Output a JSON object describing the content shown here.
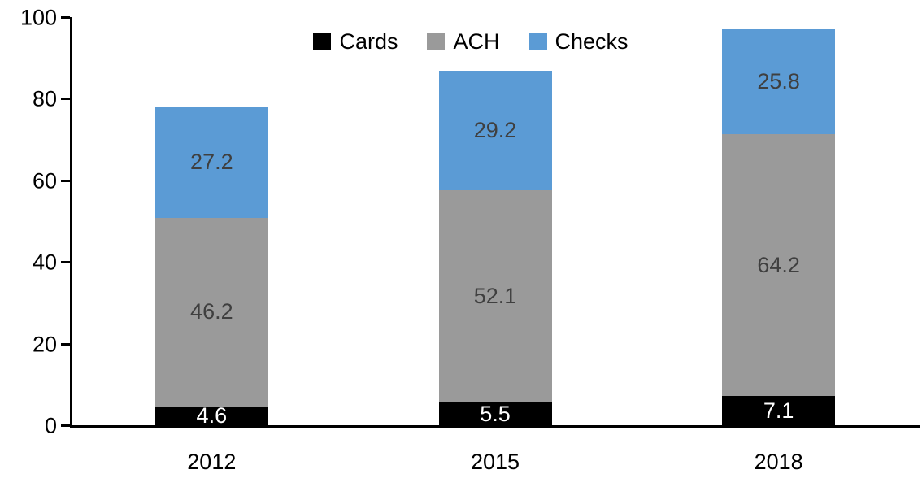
{
  "chart_data": {
    "type": "bar",
    "stacked": true,
    "title": "",
    "categories": [
      "2012",
      "2015",
      "2018"
    ],
    "series": [
      {
        "name": "Cards",
        "color": "#000000",
        "label_color": "#FFFFFF",
        "values": [
          4.6,
          5.5,
          7.1
        ]
      },
      {
        "name": "ACH",
        "color": "#9A9A9A",
        "label_color": "#3F3F3F",
        "values": [
          46.2,
          52.1,
          64.2
        ]
      },
      {
        "name": "Checks",
        "color": "#5B9BD5",
        "label_color": "#3F3F3F",
        "values": [
          27.2,
          29.2,
          25.8
        ]
      }
    ],
    "xlabel": "",
    "ylabel": "",
    "ylim": [
      0,
      100
    ],
    "yticks": [
      0,
      20,
      40,
      60,
      80,
      100
    ],
    "grid": false,
    "legend_position": "top",
    "axis_color": "#000000"
  }
}
